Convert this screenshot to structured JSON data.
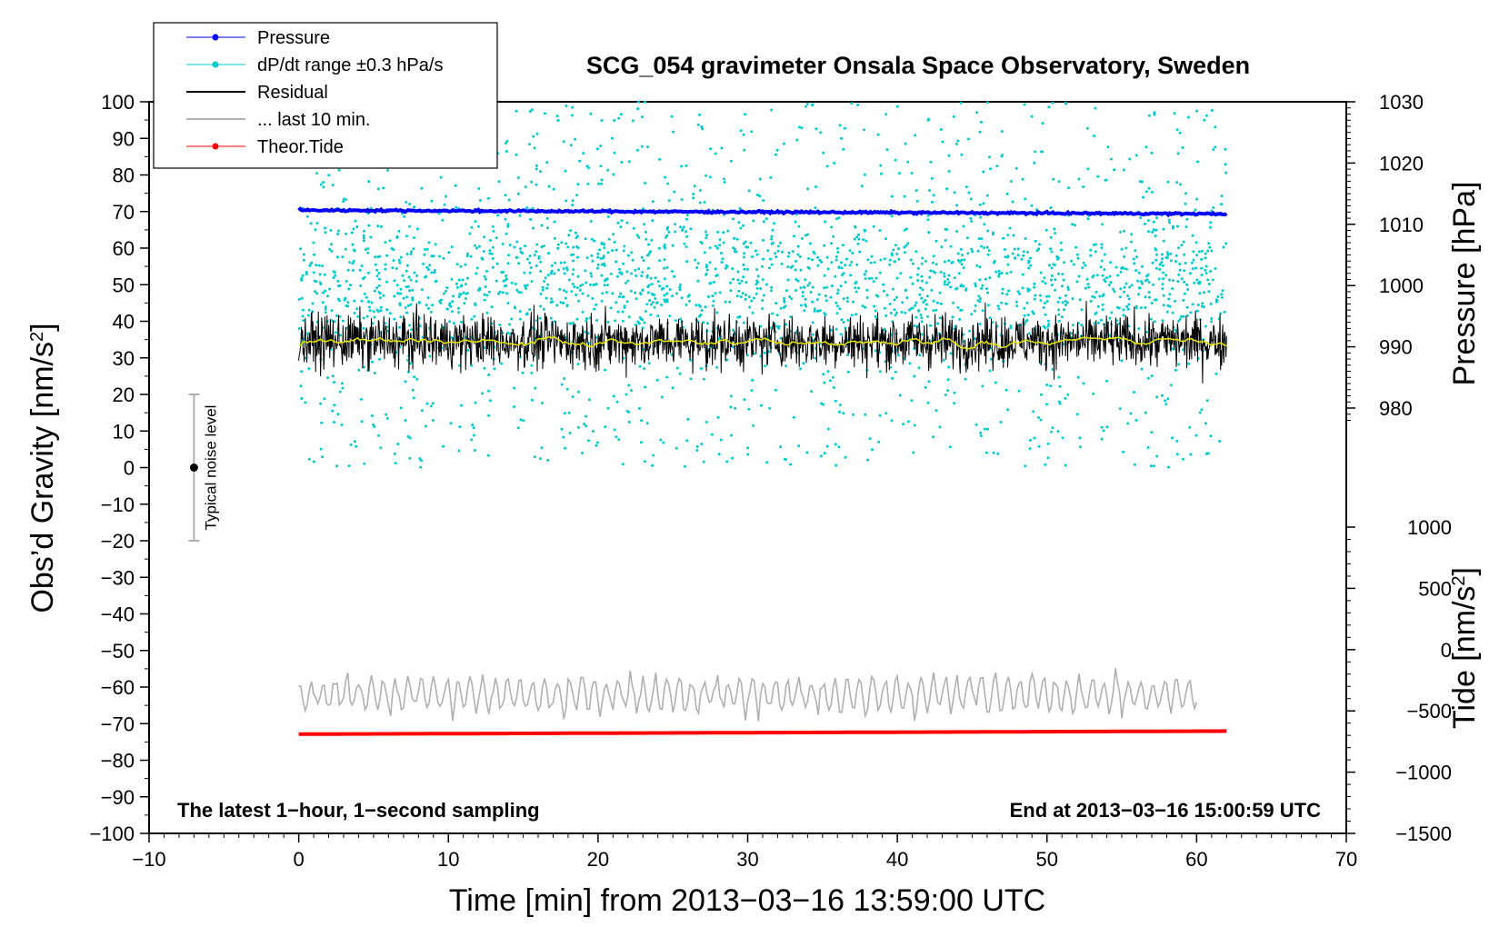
{
  "chart_data": {
    "type": "line",
    "title": "SCG_054 gravimeter Onsala Space Observatory, Sweden",
    "xlabel": "Time [min] from 2013−03−16 13:59:00 UTC",
    "ylabel_left_main": "Obs’d Gravity [nm/s",
    "ylabel_left_sup": "2",
    "ylabel_left_end": "]",
    "ylabel_right_pressure": "Pressure [hPa]",
    "ylabel_right_tide_main": "Tide [nm/s",
    "ylabel_right_tide_sup": "2",
    "ylabel_right_tide_end": "]",
    "xlim": [
      -10,
      70
    ],
    "ylim_gravity": [
      -100,
      100
    ],
    "ylim_pressure_ticks": [
      980,
      1030
    ],
    "ylim_tide_ticks": [
      -1500,
      1000
    ],
    "x_ticks": [
      "−10",
      "0",
      "10",
      "20",
      "30",
      "40",
      "50",
      "60",
      "70"
    ],
    "x_tick_values": [
      -10,
      0,
      10,
      20,
      30,
      40,
      50,
      60,
      70
    ],
    "y_ticks_gravity": [
      "100",
      "90",
      "80",
      "70",
      "60",
      "50",
      "40",
      "30",
      "20",
      "10",
      "0",
      "−10",
      "−20",
      "−30",
      "−40",
      "−50",
      "−60",
      "−70",
      "−80",
      "−90",
      "−100"
    ],
    "y_tick_values_gravity": [
      100,
      90,
      80,
      70,
      60,
      50,
      40,
      30,
      20,
      10,
      0,
      -10,
      -20,
      -30,
      -40,
      -50,
      -60,
      -70,
      -80,
      -90,
      -100
    ],
    "y_ticks_pressure": [
      "1030",
      "1020",
      "1010",
      "1000",
      "990",
      "980"
    ],
    "y_tick_values_pressure": [
      1030,
      1020,
      1010,
      1000,
      990,
      980
    ],
    "y_ticks_tide": [
      "1000",
      "500",
      "0",
      "−500",
      "−1000",
      "−1500"
    ],
    "y_tick_values_tide": [
      1000,
      500,
      0,
      -500,
      -1000,
      -1500
    ],
    "grid": false,
    "legend_position": "top-left",
    "legend": [
      {
        "name": "Pressure",
        "color": "#0000ff",
        "marker": "dot"
      },
      {
        "name": "dP/dt range ±0.3 hPa/s",
        "color": "#00cccc",
        "marker": "dot"
      },
      {
        "name": "Residual",
        "color": "#000000",
        "marker": "none"
      },
      {
        "name": "... last 10 min.",
        "color": "#b0b0b0",
        "marker": "none"
      },
      {
        "name": "Theor.Tide",
        "color": "#ff0000",
        "marker": "dot"
      }
    ],
    "series": [
      {
        "name": "Pressure",
        "axis": "pressure",
        "x_range": [
          0,
          62
        ],
        "start_value": 1012.3,
        "end_value": 1011.7
      },
      {
        "name": "dP/dt range ±0.3 hPa/s",
        "axis": "gravity",
        "x_range": [
          0,
          62
        ],
        "value_range": [
          0,
          100
        ],
        "typical_center": 50
      },
      {
        "name": "Residual",
        "axis": "gravity",
        "x_range": [
          0,
          62
        ],
        "mean": 34.5,
        "spread": 8
      },
      {
        "name": "... last 10 min.",
        "axis": "gravity",
        "x_range": [
          0,
          60
        ],
        "mean": -62,
        "spread": 6
      },
      {
        "name": "Theor.Tide",
        "axis": "tide",
        "x_range": [
          0,
          62
        ],
        "start_value": -690,
        "end_value": -665
      }
    ],
    "noise_bar": {
      "label": "Typical noise level",
      "x": -7,
      "center": 0,
      "low": -20,
      "high": 20
    },
    "annotations": {
      "bottom_left": "The latest 1−hour, 1−second sampling",
      "bottom_right": "End at 2013−03−16 15:00:59 UTC"
    }
  }
}
